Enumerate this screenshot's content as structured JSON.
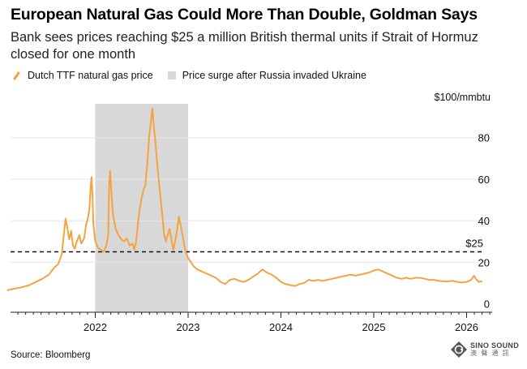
{
  "header": {
    "title": "European Natural Gas Could More Than Double, Goldman Says",
    "subtitle": "Bank sees prices reaching $25 a million British thermal units if Strait of Hormuz closed for one month"
  },
  "legend": {
    "series_label": "Dutch TTF natural gas price",
    "shade_label": "Price surge after Russia invaded Ukraine"
  },
  "footer": {
    "source": "Source: Bloomberg",
    "watermark_en": "SINO SOUND",
    "watermark_cn": "澳 聲 通 訊"
  },
  "chart_data": {
    "type": "line",
    "unit_label": "$100/mmbtu",
    "ylim": [
      0,
      100
    ],
    "y_ticks": [
      0,
      20,
      40,
      60,
      80
    ],
    "x_ticks": [
      "2022",
      "2023",
      "2024",
      "2025",
      "2026"
    ],
    "shaded_range": {
      "start": 2022.0,
      "end": 2023.0
    },
    "reference_line": {
      "value": 25,
      "label": "$25"
    },
    "colors": {
      "line": "#f4a340",
      "shade": "#d8d8d8",
      "grid": "#e6e6e6"
    },
    "series": [
      {
        "values": [
          [
            2021.05,
            6.5
          ],
          [
            2021.12,
            7.2
          ],
          [
            2021.2,
            7.8
          ],
          [
            2021.28,
            8.8
          ],
          [
            2021.36,
            10.5
          ],
          [
            2021.43,
            12.0
          ],
          [
            2021.5,
            14.0
          ],
          [
            2021.56,
            17.5
          ],
          [
            2021.6,
            19.0
          ],
          [
            2021.64,
            24.0
          ],
          [
            2021.66,
            33.0
          ],
          [
            2021.68,
            41.0
          ],
          [
            2021.7,
            36.0
          ],
          [
            2021.72,
            31.0
          ],
          [
            2021.74,
            35.0
          ],
          [
            2021.76,
            28.0
          ],
          [
            2021.78,
            26.5
          ],
          [
            2021.8,
            30.0
          ],
          [
            2021.83,
            33.0
          ],
          [
            2021.85,
            29.0
          ],
          [
            2021.88,
            31.5
          ],
          [
            2021.9,
            38.0
          ],
          [
            2021.92,
            41.0
          ],
          [
            2021.935,
            45.0
          ],
          [
            2021.95,
            56.0
          ],
          [
            2021.96,
            61.0
          ],
          [
            2021.97,
            52.0
          ],
          [
            2021.98,
            38.0
          ],
          [
            2022.0,
            30.0
          ],
          [
            2022.03,
            27.0
          ],
          [
            2022.06,
            26.0
          ],
          [
            2022.09,
            25.0
          ],
          [
            2022.12,
            28.0
          ],
          [
            2022.14,
            33.0
          ],
          [
            2022.15,
            58.0
          ],
          [
            2022.16,
            64.0
          ],
          [
            2022.17,
            56.0
          ],
          [
            2022.19,
            43.0
          ],
          [
            2022.22,
            36.0
          ],
          [
            2022.25,
            33.0
          ],
          [
            2022.28,
            31.0
          ],
          [
            2022.31,
            30.0
          ],
          [
            2022.34,
            31.5
          ],
          [
            2022.37,
            28.0
          ],
          [
            2022.4,
            29.0
          ],
          [
            2022.42,
            26.0
          ],
          [
            2022.44,
            30.0
          ],
          [
            2022.46,
            39.0
          ],
          [
            2022.48,
            46.0
          ],
          [
            2022.5,
            51.0
          ],
          [
            2022.52,
            55.0
          ],
          [
            2022.54,
            57.0
          ],
          [
            2022.56,
            67.0
          ],
          [
            2022.58,
            80.0
          ],
          [
            2022.6,
            88.0
          ],
          [
            2022.615,
            94.0
          ],
          [
            2022.63,
            86.0
          ],
          [
            2022.65,
            77.0
          ],
          [
            2022.67,
            66.0
          ],
          [
            2022.7,
            52.0
          ],
          [
            2022.72,
            44.0
          ],
          [
            2022.74,
            34.0
          ],
          [
            2022.76,
            30.0
          ],
          [
            2022.78,
            33.0
          ],
          [
            2022.8,
            36.0
          ],
          [
            2022.82,
            31.0
          ],
          [
            2022.84,
            26.0
          ],
          [
            2022.86,
            30.0
          ],
          [
            2022.88,
            35.0
          ],
          [
            2022.9,
            42.0
          ],
          [
            2022.92,
            38.0
          ],
          [
            2022.94,
            33.0
          ],
          [
            2022.96,
            28.0
          ],
          [
            2022.98,
            24.0
          ],
          [
            2023.0,
            22.0
          ],
          [
            2023.03,
            20.0
          ],
          [
            2023.06,
            18.0
          ],
          [
            2023.1,
            16.5
          ],
          [
            2023.15,
            15.5
          ],
          [
            2023.2,
            14.5
          ],
          [
            2023.25,
            13.5
          ],
          [
            2023.3,
            12.5
          ],
          [
            2023.35,
            10.5
          ],
          [
            2023.4,
            9.5
          ],
          [
            2023.45,
            11.5
          ],
          [
            2023.5,
            12.0
          ],
          [
            2023.55,
            11.0
          ],
          [
            2023.6,
            10.5
          ],
          [
            2023.65,
            11.5
          ],
          [
            2023.7,
            13.0
          ],
          [
            2023.75,
            14.5
          ],
          [
            2023.8,
            16.5
          ],
          [
            2023.85,
            15.0
          ],
          [
            2023.9,
            14.0
          ],
          [
            2023.95,
            12.5
          ],
          [
            2024.0,
            10.5
          ],
          [
            2024.05,
            9.5
          ],
          [
            2024.1,
            9.0
          ],
          [
            2024.15,
            8.5
          ],
          [
            2024.2,
            9.5
          ],
          [
            2024.25,
            10.0
          ],
          [
            2024.3,
            11.5
          ],
          [
            2024.35,
            11.0
          ],
          [
            2024.4,
            11.5
          ],
          [
            2024.45,
            11.0
          ],
          [
            2024.5,
            11.5
          ],
          [
            2024.55,
            12.0
          ],
          [
            2024.6,
            12.5
          ],
          [
            2024.65,
            13.0
          ],
          [
            2024.7,
            13.5
          ],
          [
            2024.75,
            14.0
          ],
          [
            2024.8,
            13.5
          ],
          [
            2024.85,
            14.0
          ],
          [
            2024.9,
            14.5
          ],
          [
            2024.95,
            15.0
          ],
          [
            2025.0,
            16.0
          ],
          [
            2025.05,
            16.5
          ],
          [
            2025.1,
            15.5
          ],
          [
            2025.15,
            14.5
          ],
          [
            2025.2,
            13.5
          ],
          [
            2025.25,
            12.5
          ],
          [
            2025.3,
            12.0
          ],
          [
            2025.35,
            12.5
          ],
          [
            2025.4,
            12.0
          ],
          [
            2025.45,
            12.5
          ],
          [
            2025.5,
            12.5
          ],
          [
            2025.55,
            12.0
          ],
          [
            2025.6,
            11.5
          ],
          [
            2025.65,
            11.5
          ],
          [
            2025.7,
            11.0
          ],
          [
            2025.75,
            10.8
          ],
          [
            2025.8,
            10.8
          ],
          [
            2025.85,
            11.0
          ],
          [
            2025.9,
            10.5
          ],
          [
            2025.95,
            10.2
          ],
          [
            2026.0,
            10.5
          ],
          [
            2026.05,
            11.5
          ],
          [
            2026.08,
            13.5
          ],
          [
            2026.1,
            12.0
          ],
          [
            2026.13,
            10.5
          ],
          [
            2026.17,
            10.8
          ]
        ]
      }
    ]
  }
}
